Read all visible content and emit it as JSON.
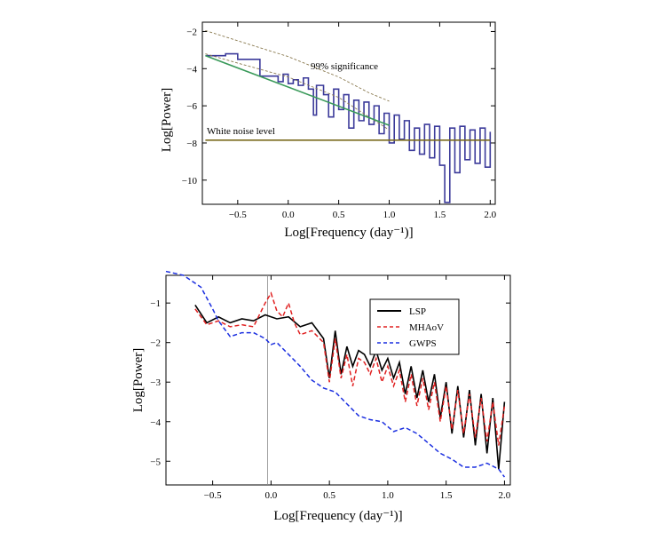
{
  "chart_data": [
    {
      "type": "line",
      "title": "",
      "xlabel": "Log[Frequency (day⁻¹)]",
      "ylabel": "Log[Power]",
      "xlim": [
        -0.85,
        2.05
      ],
      "ylim": [
        -11.3,
        -1.5
      ],
      "x_ticks": [
        -0.5,
        0.0,
        0.5,
        1.0,
        1.5,
        2.0
      ],
      "x_tick_labels": [
        "−0.5",
        "0.0",
        "0.5",
        "1.0",
        "1.5",
        "2.0"
      ],
      "y_ticks": [
        -2,
        -4,
        -6,
        -8,
        -10
      ],
      "y_tick_labels": [
        "−2",
        "−4",
        "−6",
        "−8",
        "−10"
      ],
      "grid": false,
      "annotations": [
        {
          "text": "99% significance",
          "x": 0.25,
          "y": -3.45
        },
        {
          "text": "White noise level",
          "x": -0.78,
          "y": -7.6
        }
      ],
      "series": [
        {
          "role": "power-spectrum",
          "color": "#3b3a9a",
          "style": "step",
          "points": [
            [
              -0.82,
              -3.3
            ],
            [
              -0.62,
              -3.2
            ],
            [
              -0.5,
              -3.5
            ],
            [
              -0.3,
              -3.5
            ],
            [
              -0.28,
              -4.4
            ],
            [
              -0.2,
              -4.4
            ],
            [
              -0.1,
              -4.7
            ],
            [
              -0.05,
              -4.3
            ],
            [
              0.0,
              -4.8
            ],
            [
              0.05,
              -4.6
            ],
            [
              0.1,
              -4.9
            ],
            [
              0.15,
              -4.5
            ],
            [
              0.2,
              -5.1
            ],
            [
              0.25,
              -6.5
            ],
            [
              0.28,
              -4.9
            ],
            [
              0.35,
              -5.4
            ],
            [
              0.4,
              -6.6
            ],
            [
              0.45,
              -5.1
            ],
            [
              0.5,
              -6.2
            ],
            [
              0.55,
              -5.4
            ],
            [
              0.6,
              -7.2
            ],
            [
              0.65,
              -5.7
            ],
            [
              0.7,
              -6.8
            ],
            [
              0.75,
              -5.8
            ],
            [
              0.8,
              -7.0
            ],
            [
              0.85,
              -6.0
            ],
            [
              0.9,
              -7.5
            ],
            [
              0.95,
              -6.4
            ],
            [
              1.0,
              -8.0
            ],
            [
              1.05,
              -6.5
            ],
            [
              1.1,
              -7.8
            ],
            [
              1.15,
              -6.8
            ],
            [
              1.2,
              -8.4
            ],
            [
              1.25,
              -7.2
            ],
            [
              1.3,
              -8.6
            ],
            [
              1.35,
              -7.0
            ],
            [
              1.4,
              -8.8
            ],
            [
              1.45,
              -7.1
            ],
            [
              1.5,
              -9.2
            ],
            [
              1.55,
              -11.2
            ],
            [
              1.6,
              -7.2
            ],
            [
              1.65,
              -9.6
            ],
            [
              1.7,
              -7.1
            ],
            [
              1.75,
              -8.9
            ],
            [
              1.8,
              -7.3
            ],
            [
              1.85,
              -9.1
            ],
            [
              1.9,
              -7.2
            ],
            [
              1.95,
              -9.3
            ],
            [
              2.0,
              -7.4
            ]
          ]
        },
        {
          "role": "99% significance",
          "color": "#8a7a50",
          "style": "dashed",
          "points": [
            [
              -0.82,
              -1.95
            ],
            [
              -0.5,
              -2.5
            ],
            [
              0.0,
              -3.35
            ],
            [
              0.5,
              -4.45
            ],
            [
              0.8,
              -5.3
            ],
            [
              1.0,
              -5.75
            ]
          ]
        },
        {
          "role": "lower-confidence",
          "color": "#8a7a50",
          "style": "dashed",
          "points": [
            [
              -0.82,
              -3.2
            ],
            [
              -0.5,
              -3.7
            ],
            [
              0.0,
              -4.45
            ],
            [
              0.5,
              -5.55
            ],
            [
              1.0,
              -7.3
            ]
          ]
        },
        {
          "role": "power-law-fit",
          "color": "#3a9a5a",
          "style": "solid",
          "points": [
            [
              -0.82,
              -3.3
            ],
            [
              1.0,
              -7.05
            ]
          ]
        },
        {
          "role": "White noise level",
          "color": "#7a6a1e",
          "style": "solid",
          "points": [
            [
              -0.82,
              -7.85
            ],
            [
              2.0,
              -7.85
            ]
          ]
        }
      ]
    },
    {
      "type": "line",
      "title": "",
      "xlabel": "Log[Frequency (day⁻¹)]",
      "ylabel": "Log[Power]",
      "xlim": [
        -0.9,
        2.05
      ],
      "ylim": [
        -5.6,
        -0.3
      ],
      "x_ticks": [
        -0.5,
        0.0,
        0.5,
        1.0,
        1.5,
        2.0
      ],
      "x_tick_labels": [
        "−0.5",
        "0.0",
        "0.5",
        "1.0",
        "1.5",
        "2.0"
      ],
      "y_ticks": [
        -1,
        -2,
        -3,
        -4,
        -5
      ],
      "y_tick_labels": [
        "−1",
        "−2",
        "−3",
        "−4",
        "−5"
      ],
      "vertical_line": -0.03,
      "grid": false,
      "legend_position": "top-right",
      "series": [
        {
          "name": "LSP",
          "color": "#000000",
          "style": "solid",
          "points": [
            [
              -0.65,
              -1.05
            ],
            [
              -0.55,
              -1.5
            ],
            [
              -0.45,
              -1.35
            ],
            [
              -0.35,
              -1.5
            ],
            [
              -0.25,
              -1.4
            ],
            [
              -0.15,
              -1.45
            ],
            [
              -0.05,
              -1.3
            ],
            [
              0.05,
              -1.4
            ],
            [
              0.15,
              -1.35
            ],
            [
              0.25,
              -1.6
            ],
            [
              0.35,
              -1.5
            ],
            [
              0.45,
              -1.9
            ],
            [
              0.5,
              -2.9
            ],
            [
              0.55,
              -1.7
            ],
            [
              0.6,
              -2.8
            ],
            [
              0.65,
              -2.1
            ],
            [
              0.7,
              -2.6
            ],
            [
              0.75,
              -2.2
            ],
            [
              0.8,
              -2.3
            ],
            [
              0.85,
              -2.6
            ],
            [
              0.9,
              -2.2
            ],
            [
              0.95,
              -2.7
            ],
            [
              1.0,
              -2.4
            ],
            [
              1.05,
              -2.9
            ],
            [
              1.1,
              -2.5
            ],
            [
              1.15,
              -3.3
            ],
            [
              1.2,
              -2.6
            ],
            [
              1.25,
              -3.4
            ],
            [
              1.3,
              -2.7
            ],
            [
              1.35,
              -3.5
            ],
            [
              1.4,
              -2.8
            ],
            [
              1.45,
              -3.9
            ],
            [
              1.5,
              -3.0
            ],
            [
              1.55,
              -4.3
            ],
            [
              1.6,
              -3.1
            ],
            [
              1.65,
              -4.4
            ],
            [
              1.7,
              -3.2
            ],
            [
              1.75,
              -4.6
            ],
            [
              1.8,
              -3.3
            ],
            [
              1.85,
              -4.8
            ],
            [
              1.9,
              -3.4
            ],
            [
              1.95,
              -5.2
            ],
            [
              2.0,
              -3.5
            ]
          ]
        },
        {
          "name": "MHAoV",
          "color": "#e02020",
          "style": "dashed",
          "points": [
            [
              -0.65,
              -1.15
            ],
            [
              -0.55,
              -1.55
            ],
            [
              -0.45,
              -1.45
            ],
            [
              -0.35,
              -1.6
            ],
            [
              -0.25,
              -1.55
            ],
            [
              -0.15,
              -1.6
            ],
            [
              -0.05,
              -1.0
            ],
            [
              0.0,
              -0.75
            ],
            [
              0.05,
              -1.2
            ],
            [
              0.1,
              -1.35
            ],
            [
              0.15,
              -1.0
            ],
            [
              0.2,
              -1.5
            ],
            [
              0.25,
              -1.8
            ],
            [
              0.35,
              -1.7
            ],
            [
              0.45,
              -2.0
            ],
            [
              0.5,
              -3.0
            ],
            [
              0.55,
              -1.9
            ],
            [
              0.6,
              -2.9
            ],
            [
              0.65,
              -2.3
            ],
            [
              0.7,
              -3.1
            ],
            [
              0.75,
              -2.4
            ],
            [
              0.8,
              -2.5
            ],
            [
              0.85,
              -2.8
            ],
            [
              0.9,
              -2.4
            ],
            [
              0.95,
              -3.0
            ],
            [
              1.0,
              -2.6
            ],
            [
              1.05,
              -3.1
            ],
            [
              1.1,
              -2.7
            ],
            [
              1.15,
              -3.5
            ],
            [
              1.2,
              -2.8
            ],
            [
              1.25,
              -3.6
            ],
            [
              1.3,
              -2.9
            ],
            [
              1.35,
              -3.7
            ],
            [
              1.4,
              -3.0
            ],
            [
              1.45,
              -4.0
            ],
            [
              1.5,
              -3.1
            ],
            [
              1.55,
              -4.2
            ],
            [
              1.6,
              -3.2
            ],
            [
              1.65,
              -4.3
            ],
            [
              1.7,
              -3.3
            ],
            [
              1.75,
              -4.4
            ],
            [
              1.8,
              -3.4
            ],
            [
              1.85,
              -4.5
            ],
            [
              1.9,
              -3.5
            ],
            [
              1.95,
              -4.6
            ],
            [
              2.0,
              -3.6
            ]
          ]
        },
        {
          "name": "GWPS",
          "color": "#1a2ee0",
          "style": "dashed",
          "points": [
            [
              -0.9,
              -0.2
            ],
            [
              -0.75,
              -0.3
            ],
            [
              -0.6,
              -0.6
            ],
            [
              -0.5,
              -1.15
            ],
            [
              -0.45,
              -1.45
            ],
            [
              -0.35,
              -1.85
            ],
            [
              -0.25,
              -1.75
            ],
            [
              -0.15,
              -1.75
            ],
            [
              -0.05,
              -1.9
            ],
            [
              0.0,
              -2.05
            ],
            [
              0.05,
              -2.0
            ],
            [
              0.15,
              -2.3
            ],
            [
              0.25,
              -2.6
            ],
            [
              0.35,
              -2.95
            ],
            [
              0.45,
              -3.15
            ],
            [
              0.55,
              -3.25
            ],
            [
              0.65,
              -3.55
            ],
            [
              0.75,
              -3.85
            ],
            [
              0.85,
              -3.95
            ],
            [
              0.95,
              -4.0
            ],
            [
              1.05,
              -4.25
            ],
            [
              1.15,
              -4.15
            ],
            [
              1.25,
              -4.3
            ],
            [
              1.35,
              -4.55
            ],
            [
              1.45,
              -4.8
            ],
            [
              1.55,
              -4.95
            ],
            [
              1.65,
              -5.15
            ],
            [
              1.75,
              -5.15
            ],
            [
              1.85,
              -5.05
            ],
            [
              1.95,
              -5.2
            ],
            [
              2.0,
              -5.4
            ]
          ]
        }
      ]
    }
  ]
}
